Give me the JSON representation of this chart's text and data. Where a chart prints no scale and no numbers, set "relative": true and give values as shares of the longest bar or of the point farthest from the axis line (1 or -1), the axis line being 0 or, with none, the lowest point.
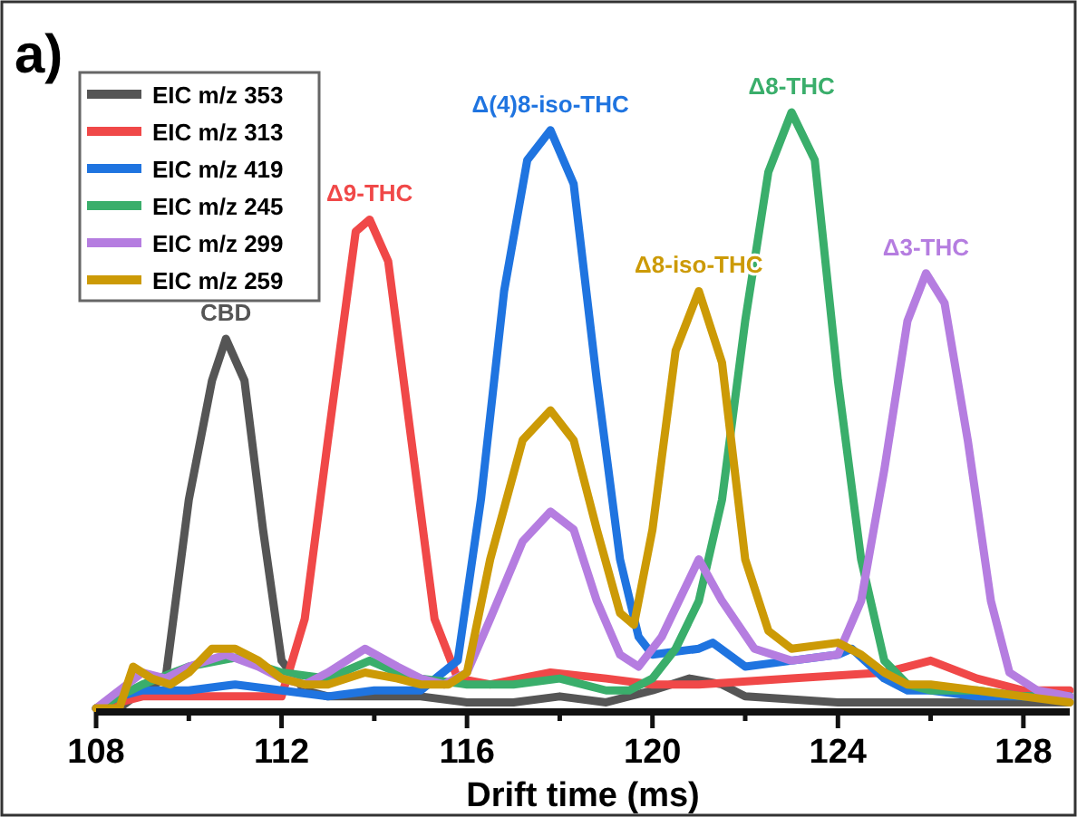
{
  "chart_data": {
    "type": "line",
    "relative": true,
    "xlabel": "Drift time (ms)",
    "xlim": [
      108,
      129
    ],
    "xticks": [
      108,
      {
        "value": 110,
        "label": null
      },
      112,
      {
        "value": 114,
        "label": null
      },
      116,
      {
        "value": 118,
        "label": null
      },
      120,
      {
        "value": 122,
        "label": null
      },
      124,
      {
        "value": 126,
        "label": null
      },
      128
    ],
    "legend": "top left",
    "grid": false,
    "marker": "none",
    "line_style": "solid",
    "annotations": [
      "a)",
      {
        "text": "CBD",
        "x": 110.8,
        "y": 0.62
      },
      {
        "text": "Δ9-THC",
        "x": 113.9,
        "y": 0.82
      },
      {
        "text": "Δ(4)8-iso-THC",
        "x": 117.8,
        "y": 0.97
      },
      {
        "text": "Δ8-iso-THC",
        "x": 121,
        "y": 0.7
      },
      {
        "text": "Δ8-THC",
        "x": 123,
        "y": 1
      },
      {
        "text": "Δ3-THC",
        "x": 125.9,
        "y": 0.73
      }
    ],
    "series": [
      {
        "name": "EIC m/z 353",
        "color": "#555555",
        "x": [
          108,
          108.5,
          109,
          109.5,
          110,
          110.5,
          110.8,
          111.2,
          111.6,
          112,
          112.5,
          113,
          114,
          115,
          116,
          117,
          118,
          119,
          120,
          120.8,
          121.5,
          122,
          124,
          126,
          129
        ],
        "values": [
          0,
          0,
          0.03,
          0.05,
          0.35,
          0.55,
          0.62,
          0.55,
          0.3,
          0.08,
          0.03,
          0.02,
          0.02,
          0.02,
          0.01,
          0.01,
          0.02,
          0.01,
          0.03,
          0.05,
          0.04,
          0.02,
          0.01,
          0.01,
          0.01
        ]
      },
      {
        "name": "EIC m/z 313",
        "color": "#f04848",
        "x": [
          108,
          109,
          110,
          111,
          112,
          112.5,
          113,
          113.6,
          113.9,
          114.3,
          114.8,
          115.3,
          115.8,
          116.5,
          117.8,
          119,
          120,
          121,
          123,
          125,
          126,
          127,
          128,
          129
        ],
        "values": [
          0,
          0.02,
          0.02,
          0.02,
          0.02,
          0.15,
          0.45,
          0.8,
          0.82,
          0.75,
          0.45,
          0.15,
          0.05,
          0.04,
          0.06,
          0.05,
          0.04,
          0.04,
          0.05,
          0.06,
          0.08,
          0.05,
          0.03,
          0.03
        ]
      },
      {
        "name": "EIC m/z 419",
        "color": "#1f74e0",
        "x": [
          108,
          108.5,
          109,
          110,
          111,
          112,
          113,
          114,
          115,
          115.8,
          116.3,
          116.8,
          117.3,
          117.8,
          118.3,
          118.8,
          119.3,
          119.7,
          120,
          121,
          121.3,
          122,
          123,
          124,
          124.3,
          125,
          125.5,
          126,
          127,
          129
        ],
        "values": [
          0,
          0.02,
          0.03,
          0.03,
          0.04,
          0.03,
          0.02,
          0.03,
          0.03,
          0.08,
          0.35,
          0.7,
          0.92,
          0.97,
          0.88,
          0.55,
          0.25,
          0.12,
          0.09,
          0.1,
          0.11,
          0.07,
          0.08,
          0.09,
          0.1,
          0.05,
          0.03,
          0.03,
          0.02,
          0.02
        ]
      },
      {
        "name": "EIC m/z 245",
        "color": "#3aae6b",
        "x": [
          108,
          109,
          110,
          111,
          112,
          113,
          113.9,
          114.5,
          115,
          116,
          117,
          118,
          119,
          119.5,
          120,
          120.5,
          121,
          121.5,
          122,
          122.5,
          123,
          123.5,
          124,
          124.5,
          125,
          125.5,
          126,
          127,
          128,
          129
        ],
        "values": [
          0,
          0.04,
          0.07,
          0.085,
          0.06,
          0.05,
          0.08,
          0.06,
          0.05,
          0.04,
          0.04,
          0.05,
          0.03,
          0.03,
          0.05,
          0.1,
          0.18,
          0.35,
          0.65,
          0.9,
          1,
          0.92,
          0.55,
          0.25,
          0.08,
          0.04,
          0.03,
          0.03,
          0.02,
          0.02
        ]
      },
      {
        "name": "EIC m/z 299",
        "color": "#b57de0",
        "x": [
          108,
          108.5,
          109,
          109.5,
          110,
          110.8,
          111.5,
          112,
          112.5,
          113,
          113.8,
          114.5,
          115,
          115.5,
          116,
          116.5,
          117.2,
          117.8,
          118.3,
          118.8,
          119.3,
          119.7,
          120.2,
          121,
          121.5,
          122.2,
          123,
          124,
          124.5,
          125,
          125.5,
          125.9,
          126.3,
          126.8,
          127.3,
          127.7,
          128.3,
          129
        ],
        "values": [
          0,
          0.03,
          0.06,
          0.05,
          0.07,
          0.09,
          0.07,
          0.05,
          0.04,
          0.06,
          0.1,
          0.07,
          0.05,
          0.04,
          0.06,
          0.15,
          0.28,
          0.33,
          0.3,
          0.18,
          0.09,
          0.07,
          0.12,
          0.25,
          0.18,
          0.1,
          0.08,
          0.09,
          0.18,
          0.4,
          0.65,
          0.73,
          0.68,
          0.45,
          0.18,
          0.06,
          0.03,
          0.02
        ]
      },
      {
        "name": "EIC m/z 259",
        "color": "#cc9a06",
        "x": [
          108,
          108.5,
          108.8,
          109.2,
          109.6,
          110,
          110.5,
          111,
          111.5,
          112,
          112.5,
          113,
          113.8,
          114.5,
          115,
          115.6,
          116,
          116.5,
          117.2,
          117.8,
          118.3,
          118.8,
          119.3,
          119.6,
          120,
          120.5,
          121,
          121.5,
          122,
          122.5,
          123,
          124,
          124.5,
          125,
          125.5,
          126,
          127,
          128,
          129
        ],
        "values": [
          0,
          0,
          0.07,
          0.05,
          0.04,
          0.06,
          0.1,
          0.1,
          0.08,
          0.05,
          0.04,
          0.04,
          0.06,
          0.05,
          0.04,
          0.04,
          0.06,
          0.25,
          0.45,
          0.5,
          0.45,
          0.3,
          0.16,
          0.14,
          0.3,
          0.6,
          0.7,
          0.58,
          0.25,
          0.13,
          0.1,
          0.11,
          0.09,
          0.06,
          0.04,
          0.04,
          0.03,
          0.02,
          0.01
        ]
      }
    ]
  }
}
